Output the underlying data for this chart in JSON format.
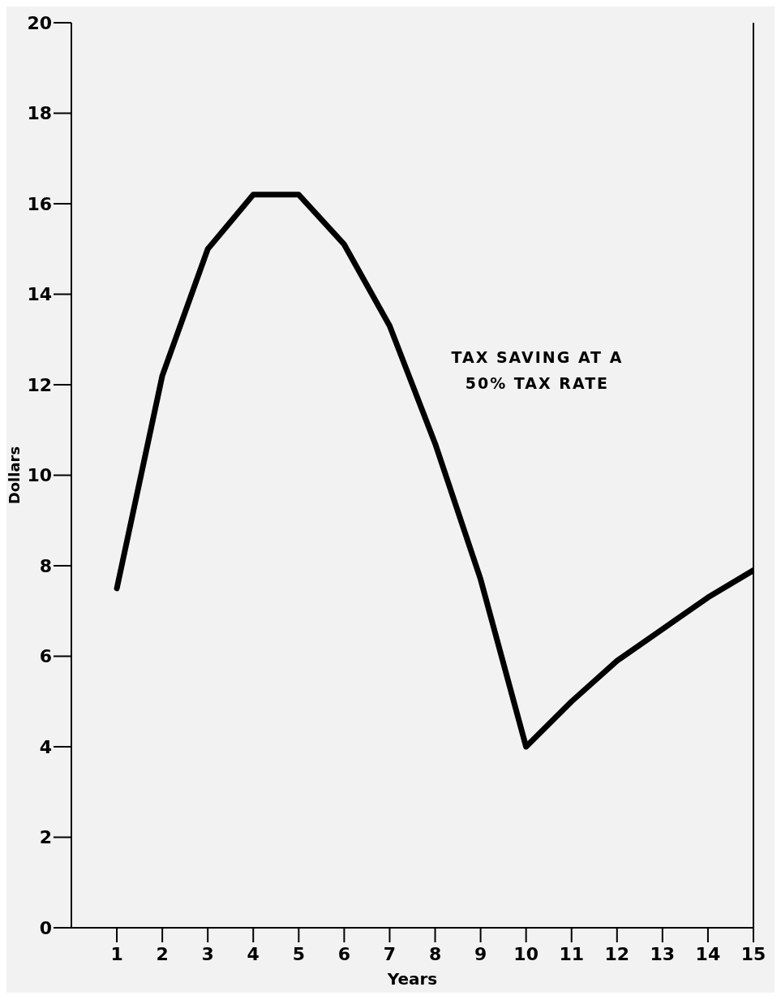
{
  "chart_data": {
    "type": "line",
    "xlabel": "Years",
    "ylabel": "Dollars",
    "x": [
      1,
      2,
      3,
      4,
      5,
      6,
      7,
      8,
      9,
      10,
      11,
      12,
      13,
      14,
      15
    ],
    "series": [
      {
        "name": "TAX SAVING AT A 50% TAX RATE",
        "color": "#000000",
        "values": [
          7.5,
          12.2,
          15.0,
          16.2,
          16.2,
          15.1,
          13.3,
          10.7,
          7.7,
          4.0,
          5.0,
          5.9,
          6.6,
          7.3,
          7.9
        ]
      }
    ],
    "xlim": [
      0,
      15
    ],
    "xticks": [
      1,
      2,
      3,
      4,
      5,
      6,
      7,
      8,
      9,
      10,
      11,
      12,
      13,
      14,
      15
    ],
    "ylim": [
      0,
      20
    ],
    "yticks": [
      0,
      2,
      4,
      6,
      8,
      10,
      12,
      14,
      16,
      18,
      20
    ],
    "grid": false,
    "legend": false,
    "marker": "none",
    "line_style": "solid"
  }
}
